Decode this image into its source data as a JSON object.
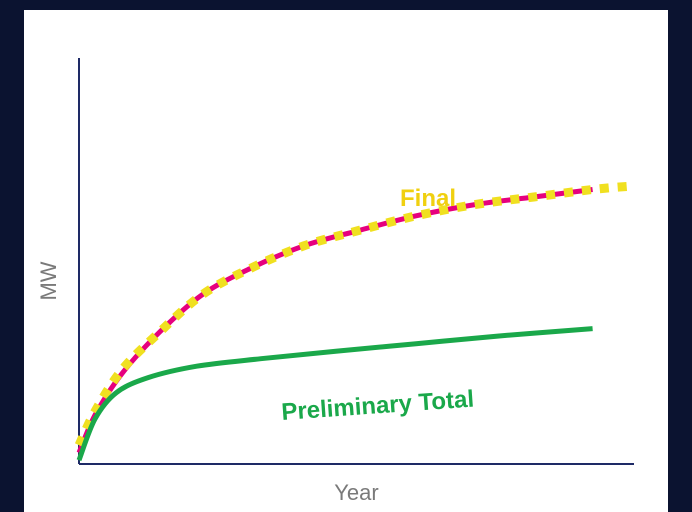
{
  "chart_data": {
    "type": "line",
    "title": "",
    "xlabel": "Year",
    "ylabel": "MW",
    "xlim": [
      0,
      10
    ],
    "ylim": [
      0,
      10
    ],
    "grid": false,
    "legend": "none",
    "x_ticks": [],
    "y_ticks": [],
    "series": [
      {
        "name": "Final",
        "color": "#e6007e",
        "points": [
          [
            0.0,
            0.3
          ],
          [
            0.3,
            1.3
          ],
          [
            0.8,
            2.4
          ],
          [
            1.5,
            3.5
          ],
          [
            2.3,
            4.5
          ],
          [
            3.2,
            5.2
          ],
          [
            4.2,
            5.8
          ],
          [
            5.2,
            6.2
          ],
          [
            6.3,
            6.6
          ],
          [
            7.4,
            6.9
          ],
          [
            8.5,
            7.1
          ],
          [
            9.6,
            7.3
          ]
        ]
      },
      {
        "name": "Final",
        "color": "#f0e020",
        "points": [
          [
            0.0,
            0.5
          ],
          [
            0.3,
            1.4
          ],
          [
            0.8,
            2.5
          ],
          [
            1.5,
            3.5
          ],
          [
            2.3,
            4.5
          ],
          [
            3.2,
            5.2
          ],
          [
            4.2,
            5.8
          ],
          [
            5.2,
            6.2
          ],
          [
            6.3,
            6.6
          ],
          [
            7.4,
            6.9
          ],
          [
            8.5,
            7.1
          ],
          [
            9.6,
            7.3
          ],
          [
            10.4,
            7.4
          ]
        ]
      },
      {
        "name": "Preliminary Total",
        "color": "#1aa84a",
        "points": [
          [
            0.0,
            0.1
          ],
          [
            0.3,
            1.2
          ],
          [
            0.7,
            1.9
          ],
          [
            1.3,
            2.3
          ],
          [
            2.2,
            2.6
          ],
          [
            3.4,
            2.8
          ],
          [
            4.8,
            3.0
          ],
          [
            6.3,
            3.2
          ],
          [
            7.8,
            3.4
          ],
          [
            9.6,
            3.6
          ]
        ]
      }
    ],
    "annotations": [
      {
        "text": "Final",
        "color": "#f0d010"
      },
      {
        "text": "Preliminary Total",
        "color": "#1aa84a"
      }
    ]
  }
}
